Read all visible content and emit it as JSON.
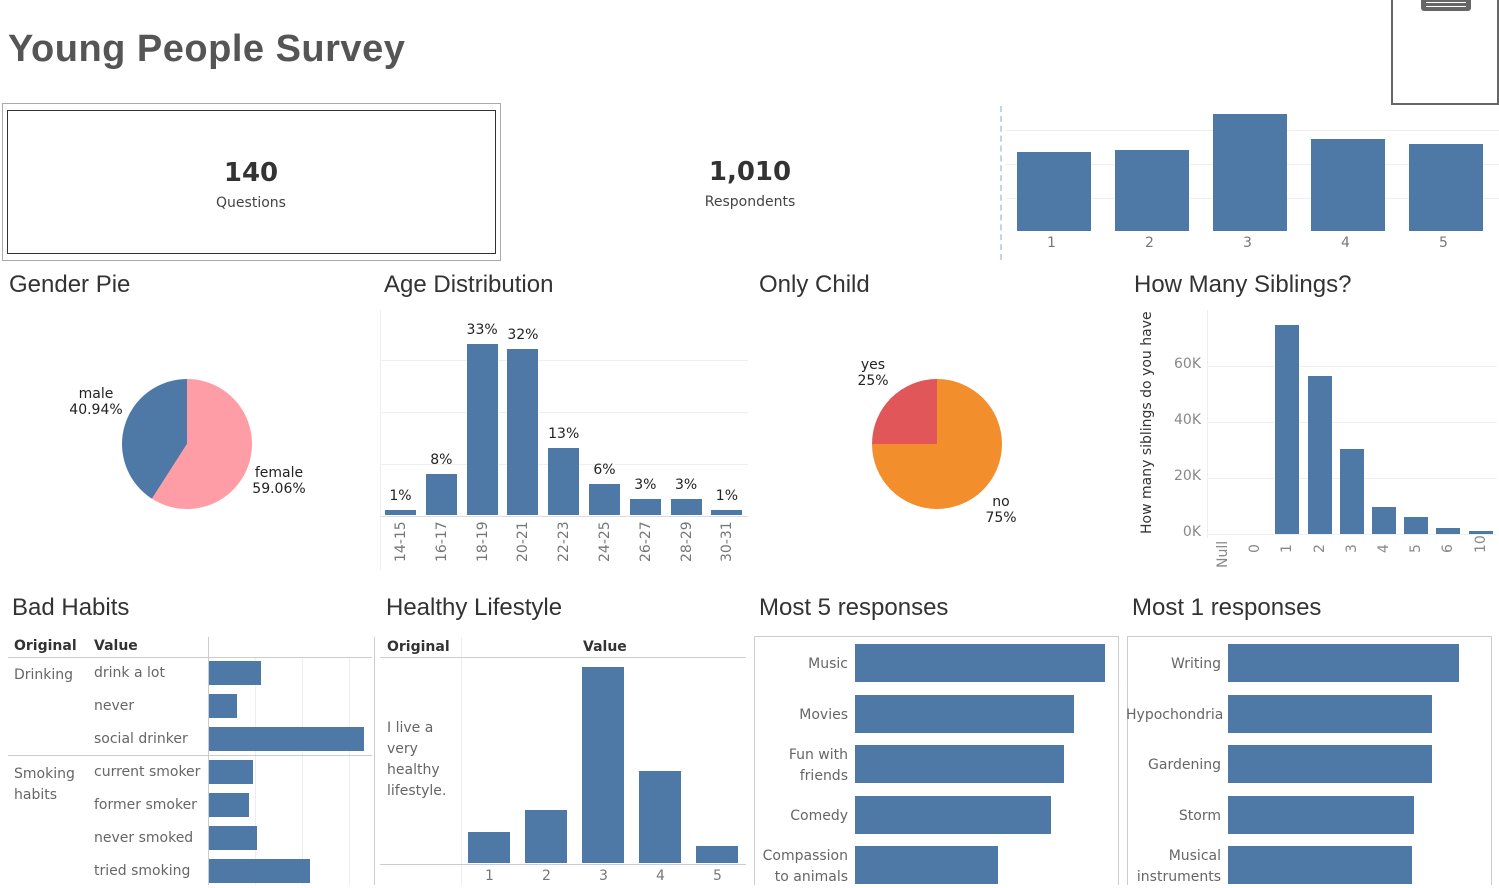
{
  "title": "Young People Survey",
  "kpis": [
    {
      "value": "140",
      "label": "Questions"
    },
    {
      "value": "1,010",
      "label": "Respondents"
    }
  ],
  "top_chart": {
    "categories": [
      "1",
      "2",
      "3",
      "4",
      "5"
    ],
    "values": [
      79,
      81,
      117,
      92,
      87
    ]
  },
  "sections": {
    "gender": "Gender Pie",
    "age": "Age Distribution",
    "only_child": "Only Child",
    "siblings": "How Many Siblings?",
    "bad_habits": "Bad Habits",
    "healthy": "Healthy Lifestyle",
    "most5": "Most 5 responses",
    "most1": "Most 1 responses"
  },
  "chart_data": [
    {
      "type": "pie",
      "title": "Gender Pie",
      "slices": [
        {
          "label": "male",
          "pct": "40.94%",
          "value": 40.94,
          "color": "#4e79a7"
        },
        {
          "label": "female",
          "pct": "59.06%",
          "value": 59.06,
          "color": "#ff9da7"
        }
      ]
    },
    {
      "type": "bar",
      "title": "Age Distribution",
      "categories": [
        "14-15",
        "16-17",
        "18-19",
        "20-21",
        "22-23",
        "24-25",
        "26-27",
        "28-29",
        "30-31"
      ],
      "values": [
        1,
        8,
        33,
        32,
        13,
        6,
        3,
        3,
        1
      ],
      "labels": [
        "1%",
        "8%",
        "33%",
        "32%",
        "13%",
        "6%",
        "3%",
        "3%",
        "1%"
      ]
    },
    {
      "type": "pie",
      "title": "Only Child",
      "slices": [
        {
          "label": "yes",
          "pct": "25%",
          "value": 25,
          "color": "#e15759"
        },
        {
          "label": "no",
          "pct": "75%",
          "value": 75,
          "color": "#f28e2b"
        }
      ]
    },
    {
      "type": "bar",
      "title": "How Many Siblings?",
      "ylabel": "How many siblings do you have",
      "yticks": [
        "0K",
        "20K",
        "40K",
        "60K"
      ],
      "ylim": [
        0,
        76000
      ],
      "categories": [
        "Null",
        "0",
        "1",
        "2",
        "3",
        "4",
        "5",
        "6",
        "10"
      ],
      "values": [
        0,
        0,
        74600,
        56400,
        30400,
        9600,
        6000,
        2100,
        1100
      ]
    },
    {
      "type": "bar",
      "title": "Healthy Lifestyle",
      "header_original": "Original",
      "header_value": "Value",
      "row_label": "I live a very healthy lifestyle.",
      "categories": [
        "1",
        "2",
        "3",
        "4",
        "5"
      ],
      "values": [
        31,
        53,
        196,
        92,
        17
      ]
    }
  ],
  "bad_habits": {
    "headers": [
      "Original",
      "Value"
    ],
    "groups": [
      {
        "name": "Drinking",
        "rows": [
          {
            "label": "drink a lot",
            "value": 52
          },
          {
            "label": "never",
            "value": 28
          },
          {
            "label": "social drinker",
            "value": 155
          }
        ]
      },
      {
        "name": "Smoking habits",
        "rows": [
          {
            "label": "current smoker",
            "value": 44
          },
          {
            "label": "former smoker",
            "value": 40
          },
          {
            "label": "never smoked",
            "value": 48
          },
          {
            "label": "tried smoking",
            "value": 101
          }
        ]
      }
    ]
  },
  "most5": [
    {
      "label": "Music",
      "value": 250
    },
    {
      "label": "Movies",
      "value": 219
    },
    {
      "label": "Fun with friends",
      "value": 209
    },
    {
      "label": "Comedy",
      "value": 196
    },
    {
      "label": "Compassion to animals",
      "value": 143
    }
  ],
  "most1": [
    {
      "label": "Writing",
      "value": 231
    },
    {
      "label": "Hypochondria",
      "value": 204
    },
    {
      "label": "Gardening",
      "value": 204
    },
    {
      "label": "Storm",
      "value": 186
    },
    {
      "label": "Musical instruments",
      "value": 184
    }
  ]
}
